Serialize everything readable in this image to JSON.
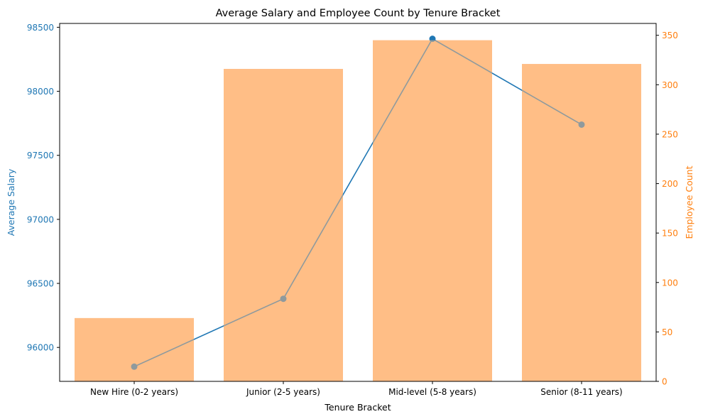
{
  "chart_data": {
    "type": "bar+line",
    "title": "Average Salary and Employee Count by Tenure Bracket",
    "xlabel": "Tenure Bracket",
    "ylabel_left": "Average Salary",
    "ylabel_right": "Employee Count",
    "categories": [
      "New Hire (0-2 years)",
      "Junior (2-5 years)",
      "Mid-level (5-8 years)",
      "Senior (8-11 years)"
    ],
    "series": [
      {
        "axis": "left",
        "kind": "line",
        "values": [
          95850,
          96380,
          98410,
          97740
        ]
      },
      {
        "axis": "right",
        "kind": "bar",
        "values": [
          64,
          316,
          345,
          321
        ]
      }
    ],
    "ylim_left": [
      95735,
      98530
    ],
    "yticks_left": [
      "96000",
      "96500",
      "97000",
      "97500",
      "98000",
      "98500"
    ],
    "ylim_right": [
      0,
      362
    ],
    "yticks_right": [
      "0",
      "50",
      "100",
      "150",
      "200",
      "250",
      "300",
      "350"
    ],
    "colors": {
      "line": "#1f77b4",
      "bar": "#ffbe86",
      "left_axis": "#1f77b4",
      "right_axis": "#ff7f0e"
    },
    "grid": false,
    "legend": "none"
  }
}
